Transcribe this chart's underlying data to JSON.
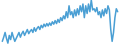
{
  "values": [
    -3.5,
    -2.8,
    -2.0,
    -3.0,
    -3.8,
    -2.5,
    -3.2,
    -2.0,
    -2.8,
    -3.5,
    -3.0,
    -2.5,
    -2.0,
    -2.8,
    -2.2,
    -1.8,
    -2.5,
    -2.0,
    -1.5,
    -2.2,
    -1.8,
    -1.5,
    -2.0,
    -1.2,
    -1.8,
    -1.3,
    -1.0,
    -1.5,
    -0.8,
    -1.2,
    -0.6,
    -1.0,
    -0.5,
    -0.9,
    -0.4,
    -0.8,
    -0.2,
    -0.6,
    0.0,
    -0.5,
    0.2,
    -0.3,
    0.5,
    0.0,
    0.8,
    0.3,
    1.5,
    0.5,
    2.5,
    1.0,
    1.5,
    0.5,
    1.8,
    0.8,
    2.0,
    1.0,
    2.5,
    1.5,
    2.8,
    0.5,
    2.5,
    1.2,
    2.8,
    1.5,
    3.5,
    1.8,
    2.0,
    1.5,
    2.2,
    1.0,
    1.5,
    0.5,
    1.8,
    0.8,
    2.0,
    1.2,
    2.5,
    1.8,
    -1.5,
    -3.5,
    -2.0,
    0.5,
    2.0,
    1.5
  ],
  "line_color": "#4a9fd4",
  "bg_color": "#ffffff",
  "linewidth": 1.1
}
